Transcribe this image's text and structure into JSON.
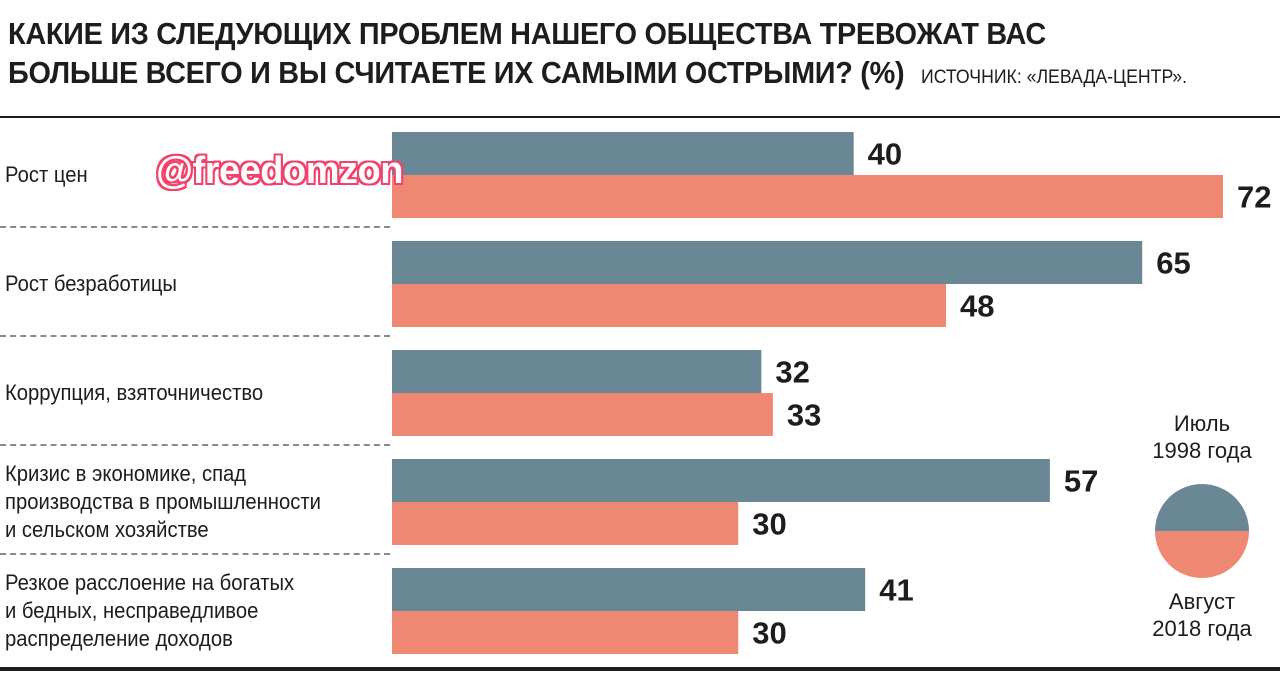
{
  "title": {
    "line1": "КАКИЕ ИЗ СЛЕДУЮЩИХ ПРОБЛЕМ НАШЕГО ОБЩЕСТВА ТРЕВОЖАТ ВАС",
    "line2": "БОЛЬШЕ ВСЕГО И ВЫ СЧИТАЕТЕ ИХ САМЫМИ ОСТРЫМИ? (%)",
    "source": "ИСТОЧНИК: «ЛЕВАДА-ЦЕНТР»."
  },
  "watermark": "@freedomzon",
  "colors": {
    "series1": "#6a8796",
    "series2": "#ee8872"
  },
  "chart_data": {
    "type": "bar",
    "orientation": "horizontal",
    "title": "КАКИЕ ИЗ СЛЕДУЮЩИХ ПРОБЛЕМ НАШЕГО ОБЩЕСТВА ТРЕВОЖАТ ВАС БОЛЬШЕ ВСЕГО И ВЫ СЧИТАЕТЕ ИХ САМЫМИ ОСТРЫМИ? (%)",
    "categories": [
      "Рост цен",
      "Рост безработицы",
      "Коррупция, взяточничество",
      "Кризис в экономике, спад производства в промышленности и сельском хозяйстве",
      "Резкое расслоение на богатых и бедных, несправедливое распределение доходов"
    ],
    "category_lines": [
      [
        "Рост цен"
      ],
      [
        "Рост безработицы"
      ],
      [
        "Коррупция, взяточничество"
      ],
      [
        "Кризис в экономике, спад",
        "производства в промышленности",
        "и сельском хозяйстве"
      ],
      [
        "Резкое расслоение на богатых",
        "и бедных, несправедливое",
        "распределение доходов"
      ]
    ],
    "series": [
      {
        "name": "Июль 1998 года",
        "name_lines": [
          "Июль",
          "1998 года"
        ],
        "values": [
          40,
          65,
          32,
          57,
          41
        ]
      },
      {
        "name": "Август 2018 года",
        "name_lines": [
          "Август",
          "2018 года"
        ],
        "values": [
          72,
          48,
          33,
          30,
          30
        ]
      }
    ],
    "xlim": [
      0,
      72
    ],
    "grid": false,
    "legend": "right"
  }
}
